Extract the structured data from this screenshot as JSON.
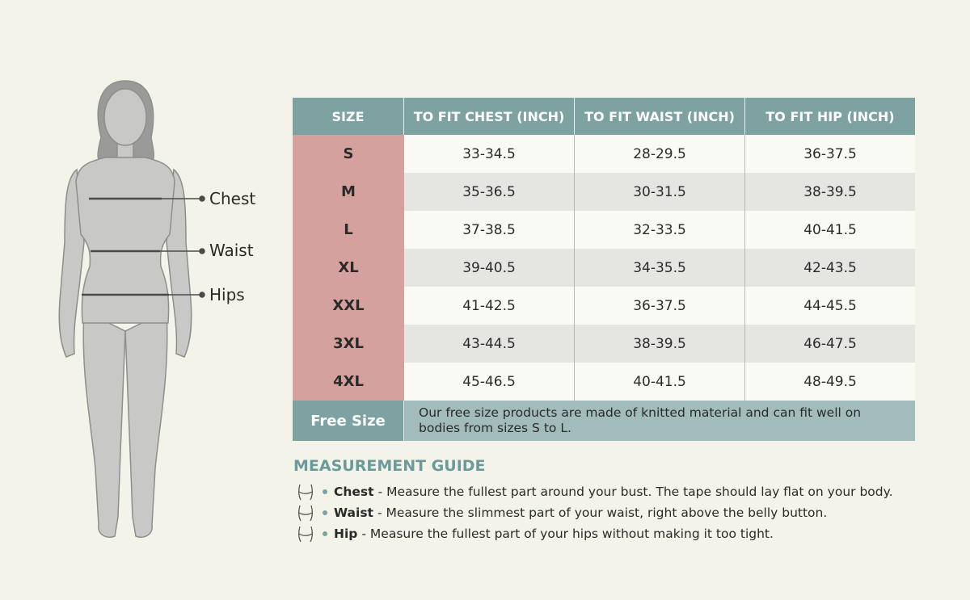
{
  "figure": {
    "labels": [
      "Chest",
      "Waist",
      "Hips"
    ]
  },
  "table": {
    "header": [
      "SIZE",
      "TO FIT CHEST (INCH)",
      "TO FIT WAIST (INCH)",
      "TO FIT HIP (INCH)"
    ],
    "rows": [
      [
        "S",
        "33-34.5",
        "28-29.5",
        "36-37.5"
      ],
      [
        "M",
        "35-36.5",
        "30-31.5",
        "38-39.5"
      ],
      [
        "L",
        "37-38.5",
        "32-33.5",
        "40-41.5"
      ],
      [
        "XL",
        "39-40.5",
        "34-35.5",
        "42-43.5"
      ],
      [
        "XXL",
        "41-42.5",
        "36-37.5",
        "44-45.5"
      ],
      [
        "3XL",
        "43-44.5",
        "38-39.5",
        "46-47.5"
      ],
      [
        "4XL",
        "45-46.5",
        "40-41.5",
        "48-49.5"
      ]
    ],
    "free_size": {
      "label": "Free Size",
      "text": "Our free size products are made of knitted material and can fit well on bodies from sizes S to L."
    }
  },
  "guide": {
    "title": "MEASUREMENT GUIDE",
    "items": [
      {
        "term": "Chest",
        "text": "- Measure the fullest part around your bust. The tape should lay flat on your body."
      },
      {
        "term": "Waist",
        "text": "- Measure the slimmest part of your waist, right above the belly button."
      },
      {
        "term": "Hip",
        "text": "- Measure the fullest part of your hips without making it too tight."
      }
    ]
  }
}
